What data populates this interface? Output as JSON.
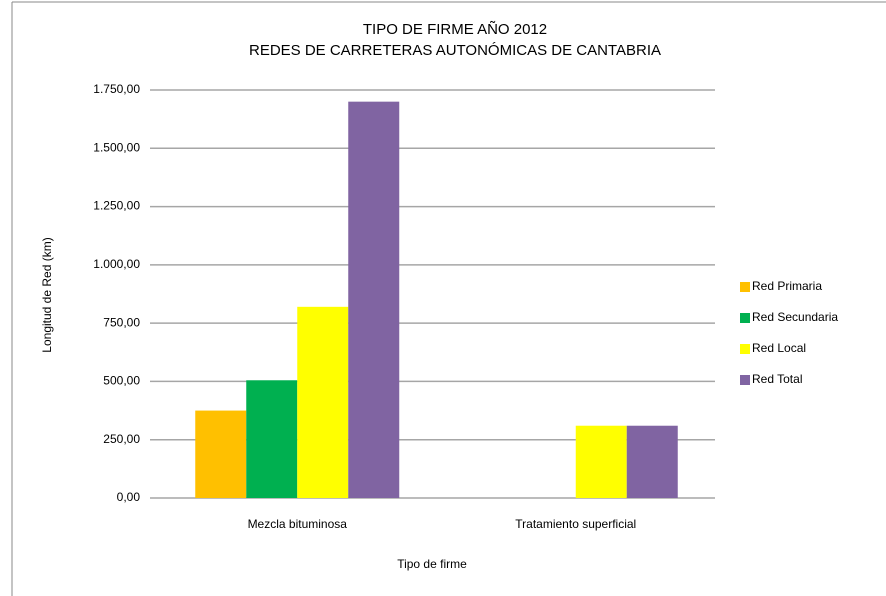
{
  "chart_data": {
    "type": "bar",
    "title": "TIPO DE FIRME AÑO 2012",
    "subtitle": "REDES DE CARRETERAS AUTONÓMICAS DE CANTABRIA",
    "x_label": "Tipo de firme",
    "y_label": "Longitud de Red  (km)",
    "categories": [
      "Mezcla bituminosa",
      "Tratamiento superficial"
    ],
    "series": [
      {
        "name": "Red Primaria",
        "color": "#ffc000",
        "values": [
          375,
          0
        ]
      },
      {
        "name": "Red Secundaria",
        "color": "#00b050",
        "values": [
          505,
          0
        ]
      },
      {
        "name": "Red Local",
        "color": "#ffff00",
        "values": [
          820,
          310
        ]
      },
      {
        "name": "Red Total",
        "color": "#8064a2",
        "values": [
          1700,
          310
        ]
      }
    ],
    "ylim": [
      0,
      1750
    ],
    "yticks": [
      {
        "value": 0,
        "label": "0,00"
      },
      {
        "value": 250,
        "label": "250,00"
      },
      {
        "value": 500,
        "label": "500,00"
      },
      {
        "value": 750,
        "label": "750,00"
      },
      {
        "value": 1000,
        "label": "1.000,00"
      },
      {
        "value": 1250,
        "label": "1.250,00"
      },
      {
        "value": 1500,
        "label": "1.500,00"
      },
      {
        "value": 1750,
        "label": "1.750,00"
      }
    ],
    "grid": true,
    "legend": "right"
  }
}
